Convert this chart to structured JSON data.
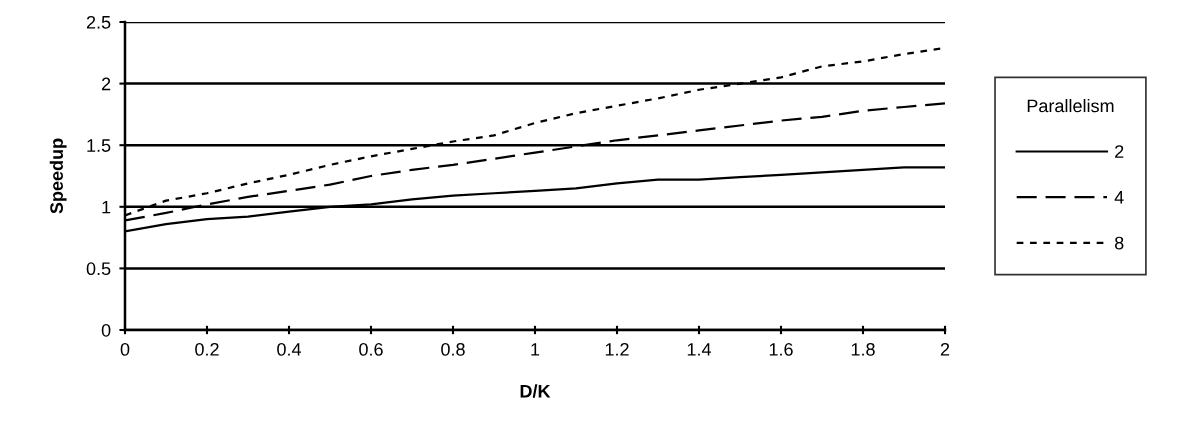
{
  "chart_data": {
    "type": "line",
    "xlabel": "D/K",
    "ylabel": "Speedup",
    "legend_title": "Parallelism",
    "legend": "right",
    "grid": "y",
    "marker": "none",
    "x": [
      0,
      0.1,
      0.2,
      0.3,
      0.4,
      0.5,
      0.6,
      0.7,
      0.8,
      0.9,
      1.0,
      1.1,
      1.2,
      1.3,
      1.4,
      1.5,
      1.6,
      1.7,
      1.8,
      1.9,
      2.0
    ],
    "xlim": [
      0,
      2
    ],
    "xticks": [
      0,
      {
        "value": 0.2,
        "label": "0.2"
      },
      {
        "value": 0.4,
        "label": "0.4"
      },
      {
        "value": 0.6,
        "label": "0.6"
      },
      {
        "value": 0.8,
        "label": "0.8"
      },
      1,
      {
        "value": 1.2,
        "label": "1.2"
      },
      {
        "value": 1.4,
        "label": "1.4"
      },
      {
        "value": 1.6,
        "label": "1.6"
      },
      {
        "value": 1.8,
        "label": "1.8"
      },
      2
    ],
    "ylim": [
      0,
      2.5
    ],
    "yticks": [
      0,
      0.5,
      1,
      1.5,
      2,
      2.5
    ],
    "series": [
      {
        "name": "2",
        "color": "#000000",
        "line_style": "solid",
        "values": [
          0.8,
          0.86,
          0.9,
          0.92,
          0.96,
          1.0,
          1.02,
          1.06,
          1.09,
          1.11,
          1.13,
          1.15,
          1.19,
          1.22,
          1.22,
          1.24,
          1.26,
          1.28,
          1.3,
          1.32,
          1.32
        ]
      },
      {
        "name": "4",
        "color": "#000000",
        "line_style": "dashed",
        "values": [
          0.89,
          0.95,
          1.02,
          1.08,
          1.13,
          1.18,
          1.25,
          1.3,
          1.34,
          1.39,
          1.44,
          1.49,
          1.54,
          1.58,
          1.62,
          1.66,
          1.7,
          1.73,
          1.78,
          1.81,
          1.84
        ]
      },
      {
        "name": "8",
        "color": "#000000",
        "line_style": "dotted",
        "values": [
          0.93,
          1.05,
          1.11,
          1.19,
          1.26,
          1.34,
          1.41,
          1.47,
          1.53,
          1.58,
          1.68,
          1.76,
          1.82,
          1.88,
          1.95,
          2.0,
          2.05,
          2.14,
          2.18,
          2.24,
          2.29
        ]
      }
    ]
  }
}
